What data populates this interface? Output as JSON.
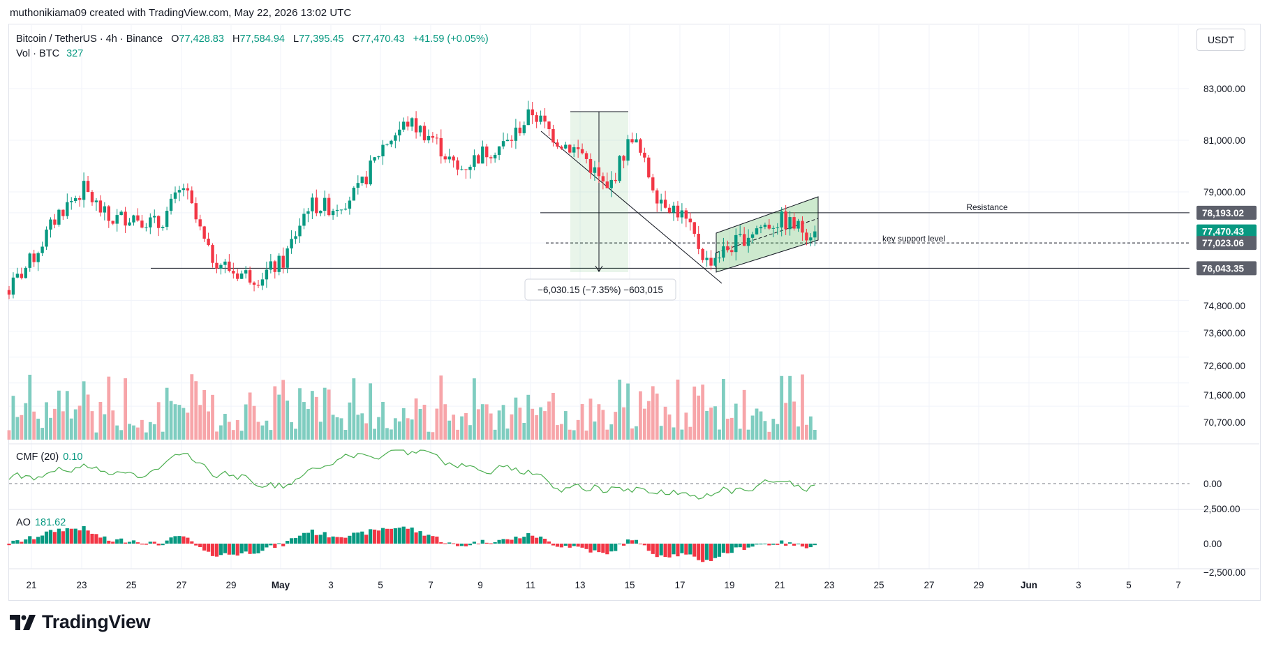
{
  "header": {
    "credit": "muthonikiama09 created with TradingView.com, May 22, 2026 13:02 UTC"
  },
  "legend": {
    "symbol": "Bitcoin / TetherUS · 4h · Binance",
    "open_label": "O",
    "open": "77,428.83",
    "high_label": "H",
    "high": "77,584.94",
    "low_label": "L",
    "low": "77,395.45",
    "close_label": "C",
    "close": "77,470.43",
    "change": "+41.59 (+0.05%)",
    "vol_label": "Vol · BTC",
    "vol": "327"
  },
  "currency_button": "USDT",
  "cmf": {
    "label": "CMF (20)",
    "value": "0.10",
    "zero_label": "0.00"
  },
  "ao": {
    "label": "AO",
    "value": "181.62",
    "labels": [
      "2,500.00",
      "0.00",
      "−2,500.00"
    ]
  },
  "price_axis": {
    "ticks": [
      "83,000.00",
      "81,000.00",
      "79,000.00",
      "74,800.00",
      "73,600.00",
      "72,600.00",
      "71,600.00",
      "70,700.00"
    ]
  },
  "price_tags": [
    {
      "price": 78193.02,
      "label": "78,193.02",
      "color": "#5d606b"
    },
    {
      "price": 77470.43,
      "label": "77,470.43",
      "color": "#089981"
    },
    {
      "price": 77023.06,
      "label": "77,023.06",
      "color": "#5d606b"
    },
    {
      "price": 76043.35,
      "label": "76,043.35",
      "color": "#5d606b"
    }
  ],
  "annotations": {
    "resistance": "Resistance",
    "support": "key support level",
    "measure": "−6,030.15 (−7.35%) −603,015"
  },
  "time_axis": {
    "labels": [
      "21",
      "23",
      "25",
      "27",
      "29",
      "May",
      "3",
      "5",
      "7",
      "9",
      "11",
      "13",
      "15",
      "17",
      "19",
      "21",
      "23",
      "25",
      "27",
      "29",
      "Jun",
      "3",
      "5",
      "7"
    ]
  },
  "brand": {
    "name": "TradingView"
  },
  "colors": {
    "up": "#089981",
    "down": "#f23645",
    "up_vol": "#7fcdc0",
    "down_vol": "#f7a5a9",
    "cmf": "#4caf50"
  },
  "chart_data": {
    "type": "candlestick",
    "title": "Bitcoin / TetherUS · 4h · Binance",
    "x_range": [
      "2026-04-20",
      "2026-06-07"
    ],
    "y_range_price": [
      74300,
      83500
    ],
    "horizontal_levels": [
      78193.02,
      77023.06,
      76043.35
    ],
    "measure_change": -6030.15,
    "measure_percent": -7.35,
    "cmf_last": 0.1,
    "ao_last": 181.62,
    "last_close": 77470.43,
    "close_path_keypoints": [
      {
        "d": "2026-04-20",
        "c": 75200
      },
      {
        "d": "2026-04-21",
        "c": 76500
      },
      {
        "d": "2026-04-22",
        "c": 78200
      },
      {
        "d": "2026-04-23",
        "c": 79100
      },
      {
        "d": "2026-04-24",
        "c": 77900
      },
      {
        "d": "2026-04-25",
        "c": 78100
      },
      {
        "d": "2026-04-26",
        "c": 77700
      },
      {
        "d": "2026-04-27",
        "c": 79200
      },
      {
        "d": "2026-04-28",
        "c": 76600
      },
      {
        "d": "2026-04-29",
        "c": 75900
      },
      {
        "d": "2026-04-30",
        "c": 75700
      },
      {
        "d": "2026-05-01",
        "c": 76300
      },
      {
        "d": "2026-05-02",
        "c": 78500
      },
      {
        "d": "2026-05-03",
        "c": 78400
      },
      {
        "d": "2026-05-04",
        "c": 79000
      },
      {
        "d": "2026-05-05",
        "c": 80800
      },
      {
        "d": "2026-05-06",
        "c": 81700
      },
      {
        "d": "2026-05-07",
        "c": 81100
      },
      {
        "d": "2026-05-08",
        "c": 79800
      },
      {
        "d": "2026-05-09",
        "c": 80500
      },
      {
        "d": "2026-05-10",
        "c": 80900
      },
      {
        "d": "2026-05-11",
        "c": 82100
      },
      {
        "d": "2026-05-12",
        "c": 81000
      },
      {
        "d": "2026-05-13",
        "c": 80500
      },
      {
        "d": "2026-05-14",
        "c": 79000
      },
      {
        "d": "2026-05-15",
        "c": 81200
      },
      {
        "d": "2026-05-16",
        "c": 78900
      },
      {
        "d": "2026-05-17",
        "c": 78100
      },
      {
        "d": "2026-05-18",
        "c": 76300
      },
      {
        "d": "2026-05-19",
        "c": 76900
      },
      {
        "d": "2026-05-20",
        "c": 77600
      },
      {
        "d": "2026-05-21",
        "c": 77900
      },
      {
        "d": "2026-05-22",
        "c": 77470
      }
    ]
  }
}
